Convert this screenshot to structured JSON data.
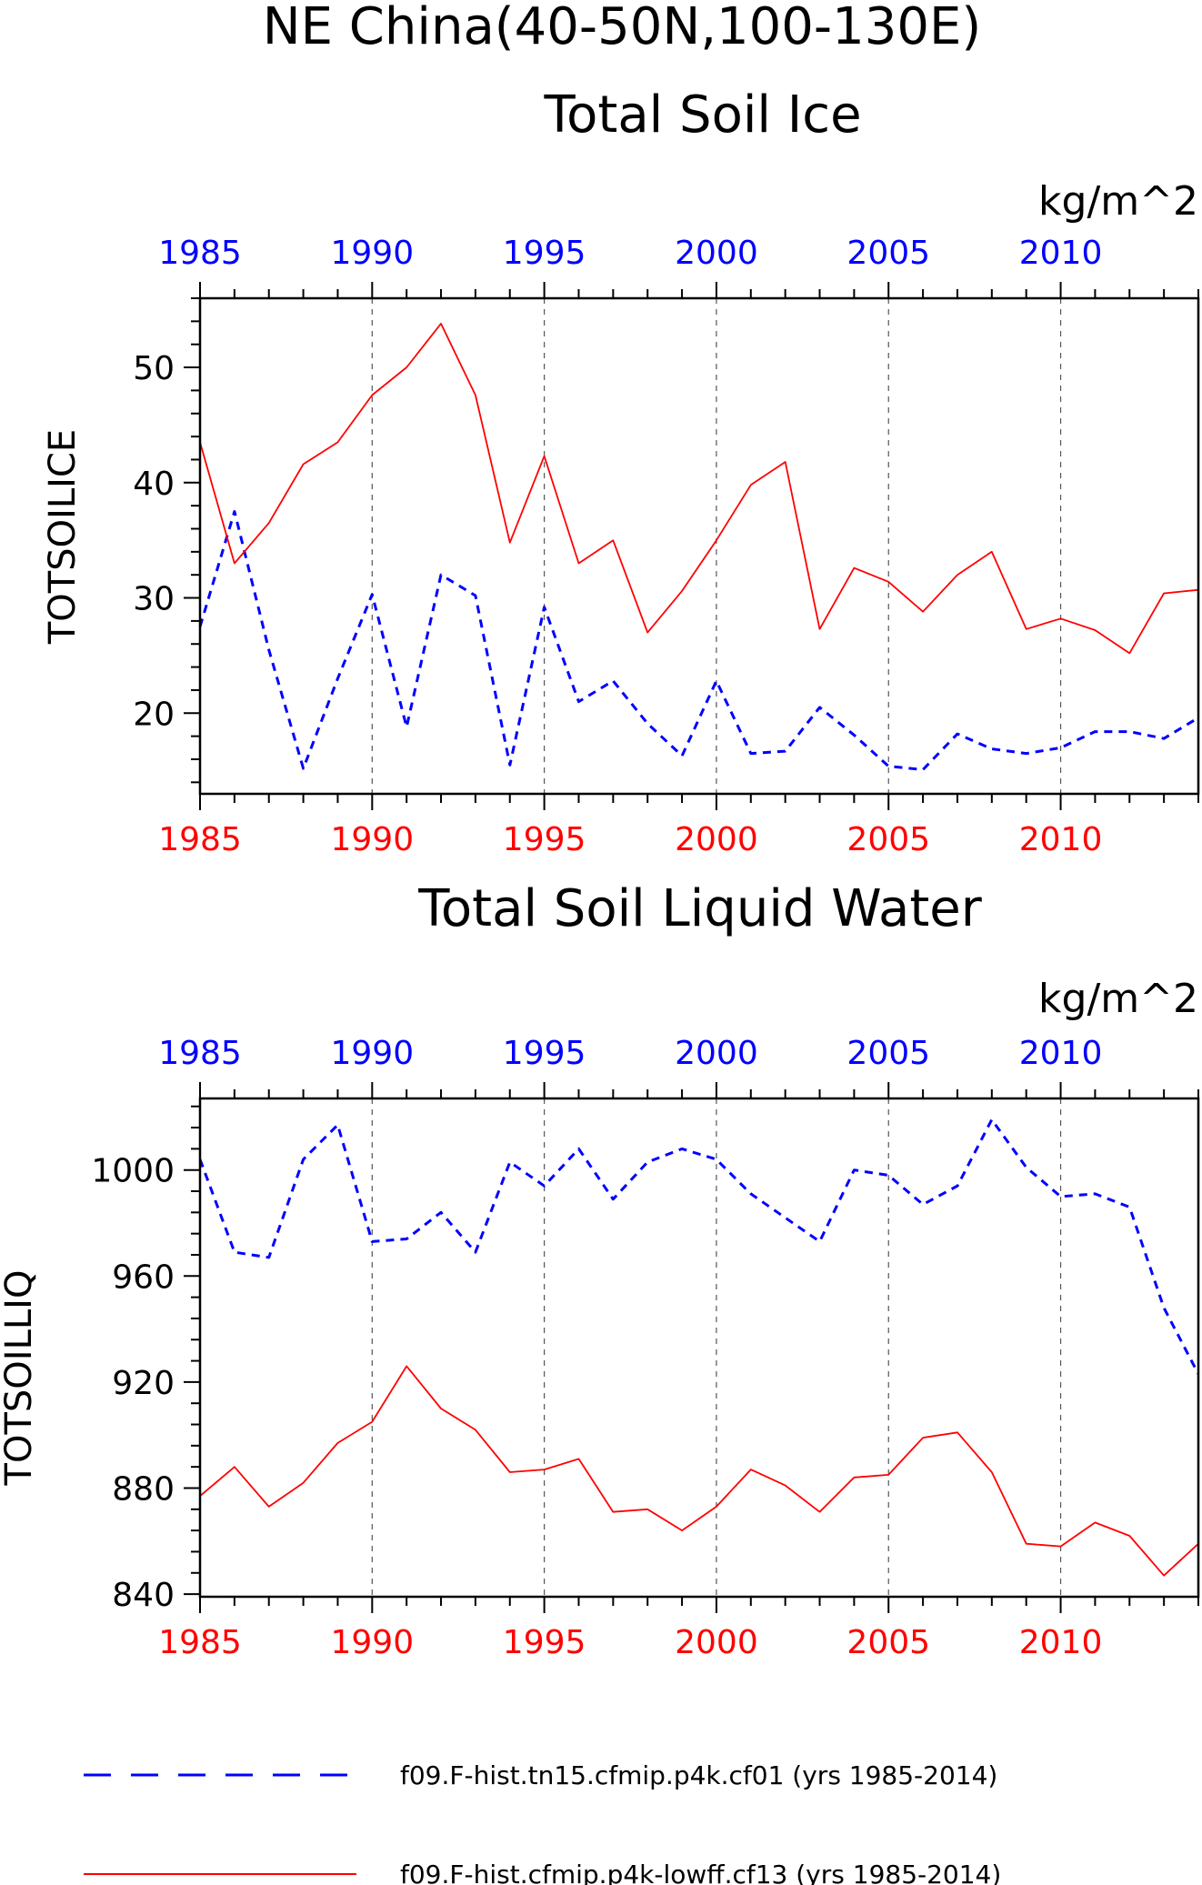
{
  "figure": {
    "region_title": "NE China(40-50N,100-130E)"
  },
  "colors": {
    "cf01": "#0000ff",
    "lowff": "#ff0000",
    "axis": "#000000",
    "grid": "#555555"
  },
  "legend": {
    "placement": "bottom",
    "entries": [
      {
        "label": "f09.F-hist.tn15.cfmip.p4k.cf01 (yrs 1985-2014)",
        "style": "dashed",
        "color": "#0000ff"
      },
      {
        "label": "f09.F-hist.cfmip.p4k-lowff.cf13 (yrs 1985-2014)",
        "style": "solid",
        "color": "#ff0000"
      }
    ]
  },
  "chart_data": [
    {
      "type": "line",
      "title": "Total Soil Ice",
      "ylabel": "TOTSOILICE",
      "unit": "kg/m^2",
      "xlim": [
        1985,
        2014
      ],
      "ylim": [
        13,
        56
      ],
      "xticks": [
        1985,
        1990,
        1995,
        2000,
        2005,
        2010
      ],
      "yticks": [
        20,
        30,
        40,
        50
      ],
      "grid": "vertical dashed at major x ticks",
      "x": [
        1985,
        1986,
        1987,
        1988,
        1989,
        1990,
        1991,
        1992,
        1993,
        1994,
        1995,
        1996,
        1997,
        1998,
        1999,
        2000,
        2001,
        2002,
        2003,
        2004,
        2005,
        2006,
        2007,
        2008,
        2009,
        2010,
        2011,
        2012,
        2013,
        2014
      ],
      "series": [
        {
          "name": "f09.F-hist.tn15.cfmip.p4k.cf01 (yrs 1985-2014)",
          "color": "#0000ff",
          "style": "dashed",
          "values": [
            27.5,
            37.5,
            25.5,
            15.2,
            23.0,
            30.3,
            18.8,
            32.0,
            30.2,
            15.5,
            29.2,
            21.0,
            22.8,
            19.1,
            16.3,
            22.8,
            16.5,
            16.7,
            20.5,
            18.1,
            15.4,
            15.1,
            18.2,
            16.9,
            16.5,
            17.0,
            18.4,
            18.4,
            17.8,
            19.6
          ]
        },
        {
          "name": "f09.F-hist.cfmip.p4k-lowff.cf13 (yrs 1985-2014)",
          "color": "#ff0000",
          "style": "solid",
          "values": [
            43.5,
            33.0,
            36.5,
            41.6,
            43.5,
            47.6,
            50.0,
            53.8,
            47.6,
            34.8,
            42.3,
            33.0,
            35.0,
            27.0,
            30.6,
            35.0,
            39.8,
            41.8,
            27.3,
            32.6,
            31.4,
            28.8,
            32.0,
            34.0,
            27.3,
            28.2,
            27.2,
            25.2,
            30.4,
            30.7
          ]
        }
      ]
    },
    {
      "type": "line",
      "title": "Total Soil Liquid Water",
      "ylabel": "TOTSOILLIQ",
      "unit": "kg/m^2",
      "xlim": [
        1985,
        2014
      ],
      "ylim": [
        839,
        1027
      ],
      "xticks": [
        1985,
        1990,
        1995,
        2000,
        2005,
        2010
      ],
      "yticks": [
        840,
        880,
        920,
        960,
        1000
      ],
      "grid": "vertical dashed at major x ticks",
      "x": [
        1985,
        1986,
        1987,
        1988,
        1989,
        1990,
        1991,
        1992,
        1993,
        1994,
        1995,
        1996,
        1997,
        1998,
        1999,
        2000,
        2001,
        2002,
        2003,
        2004,
        2005,
        2006,
        2007,
        2008,
        2009,
        2010,
        2011,
        2012,
        2013,
        2014
      ],
      "series": [
        {
          "name": "f09.F-hist.tn15.cfmip.p4k.cf01 (yrs 1985-2014)",
          "color": "#0000ff",
          "style": "dashed",
          "values": [
            1004,
            969,
            967,
            1004,
            1017,
            973,
            974,
            984,
            969,
            1003,
            994,
            1008,
            989,
            1003,
            1008,
            1004,
            991,
            982,
            973,
            1000,
            998,
            987,
            994,
            1019,
            1001,
            990,
            991,
            986,
            948,
            923
          ]
        },
        {
          "name": "f09.F-hist.cfmip.p4k-lowff.cf13 (yrs 1985-2014)",
          "color": "#ff0000",
          "style": "solid",
          "values": [
            877,
            888,
            873,
            882,
            897,
            905,
            926,
            910,
            902,
            886,
            887,
            891,
            871,
            872,
            864,
            873,
            887,
            881,
            871,
            884,
            885,
            899,
            901,
            886,
            859,
            858,
            867,
            862,
            847,
            859
          ]
        }
      ]
    }
  ]
}
